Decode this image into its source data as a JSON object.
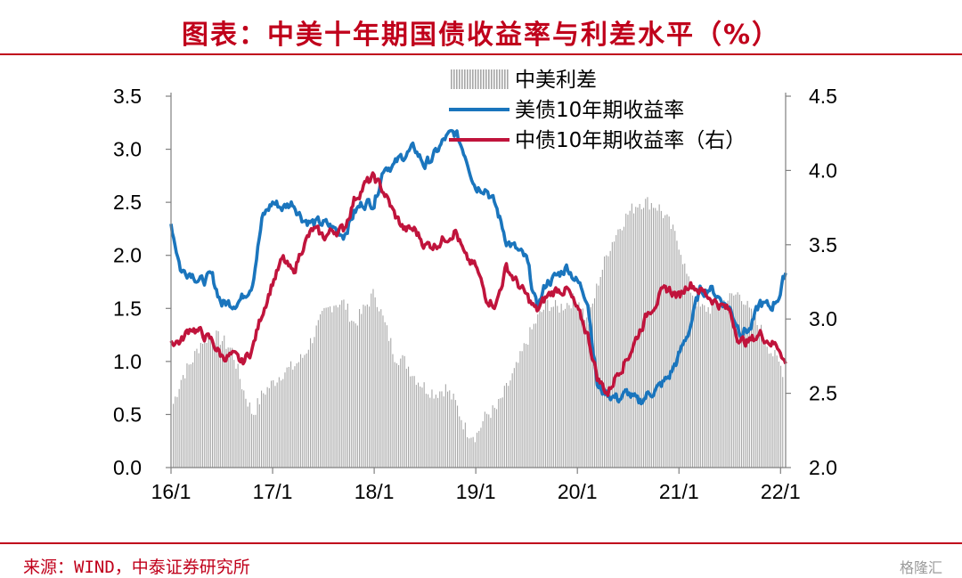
{
  "header": {
    "title": "图表：中美十年期国债收益率与利差水平（%）"
  },
  "footer": {
    "source": "来源：WIND，中泰证券研究所",
    "watermark": "格隆汇"
  },
  "chart_data": {
    "type": "line+bar",
    "x_ticks": [
      "16/1",
      "17/1",
      "18/1",
      "19/1",
      "20/1",
      "21/1",
      "22/1"
    ],
    "y_left": {
      "ticks": [
        "0.0",
        "0.5",
        "1.0",
        "1.5",
        "2.0",
        "2.5",
        "3.0",
        "3.5"
      ],
      "range": [
        0,
        3.5
      ]
    },
    "y_right": {
      "ticks": [
        "2.0",
        "2.5",
        "3.0",
        "3.5",
        "4.0",
        "4.5"
      ],
      "range": [
        2.0,
        4.5
      ]
    },
    "legend_position": "top-center",
    "series": [
      {
        "name": "中美利差",
        "type": "bar",
        "axis": "left",
        "color": "#a6a6a6",
        "points": [
          [
            2016.0,
            0.55
          ],
          [
            2016.1,
            0.85
          ],
          [
            2016.2,
            1.0
          ],
          [
            2016.3,
            1.2
          ],
          [
            2016.4,
            1.25
          ],
          [
            2016.5,
            1.2
          ],
          [
            2016.6,
            1.1
          ],
          [
            2016.7,
            0.75
          ],
          [
            2016.8,
            0.5
          ],
          [
            2016.9,
            0.7
          ],
          [
            2017.0,
            0.8
          ],
          [
            2017.1,
            0.9
          ],
          [
            2017.2,
            0.95
          ],
          [
            2017.3,
            1.05
          ],
          [
            2017.4,
            1.25
          ],
          [
            2017.5,
            1.45
          ],
          [
            2017.6,
            1.55
          ],
          [
            2017.7,
            1.55
          ],
          [
            2017.8,
            1.35
          ],
          [
            2017.9,
            1.5
          ],
          [
            2018.0,
            1.65
          ],
          [
            2018.1,
            1.35
          ],
          [
            2018.2,
            1.05
          ],
          [
            2018.3,
            1.0
          ],
          [
            2018.4,
            0.85
          ],
          [
            2018.5,
            0.75
          ],
          [
            2018.6,
            0.7
          ],
          [
            2018.7,
            0.75
          ],
          [
            2018.8,
            0.6
          ],
          [
            2018.9,
            0.35
          ],
          [
            2019.0,
            0.3
          ],
          [
            2019.1,
            0.5
          ],
          [
            2019.2,
            0.55
          ],
          [
            2019.3,
            0.75
          ],
          [
            2019.4,
            0.95
          ],
          [
            2019.5,
            1.2
          ],
          [
            2019.6,
            1.4
          ],
          [
            2019.7,
            1.55
          ],
          [
            2019.8,
            1.5
          ],
          [
            2019.9,
            1.55
          ],
          [
            2020.0,
            1.6
          ],
          [
            2020.1,
            1.35
          ],
          [
            2020.2,
            1.75
          ],
          [
            2020.3,
            2.05
          ],
          [
            2020.4,
            2.25
          ],
          [
            2020.5,
            2.4
          ],
          [
            2020.6,
            2.5
          ],
          [
            2020.7,
            2.5
          ],
          [
            2020.8,
            2.45
          ],
          [
            2020.9,
            2.3
          ],
          [
            2021.0,
            2.1
          ],
          [
            2021.1,
            1.7
          ],
          [
            2021.2,
            1.5
          ],
          [
            2021.3,
            1.5
          ],
          [
            2021.4,
            1.55
          ],
          [
            2021.5,
            1.6
          ],
          [
            2021.6,
            1.65
          ],
          [
            2021.7,
            1.45
          ],
          [
            2021.8,
            1.3
          ],
          [
            2021.9,
            1.1
          ],
          [
            2022.0,
            0.95
          ],
          [
            2022.05,
            0.85
          ]
        ]
      },
      {
        "name": "美债10年期收益率",
        "type": "line",
        "axis": "left",
        "color": "#1a75bd",
        "points": [
          [
            2016.0,
            2.3
          ],
          [
            2016.1,
            1.85
          ],
          [
            2016.2,
            1.85
          ],
          [
            2016.3,
            1.75
          ],
          [
            2016.4,
            1.8
          ],
          [
            2016.5,
            1.55
          ],
          [
            2016.6,
            1.55
          ],
          [
            2016.7,
            1.6
          ],
          [
            2016.8,
            1.75
          ],
          [
            2016.9,
            2.35
          ],
          [
            2017.0,
            2.5
          ],
          [
            2017.1,
            2.45
          ],
          [
            2017.2,
            2.5
          ],
          [
            2017.3,
            2.35
          ],
          [
            2017.4,
            2.3
          ],
          [
            2017.5,
            2.3
          ],
          [
            2017.6,
            2.25
          ],
          [
            2017.7,
            2.2
          ],
          [
            2017.8,
            2.4
          ],
          [
            2017.9,
            2.5
          ],
          [
            2018.0,
            2.5
          ],
          [
            2018.1,
            2.85
          ],
          [
            2018.2,
            2.85
          ],
          [
            2018.3,
            2.95
          ],
          [
            2018.4,
            3.0
          ],
          [
            2018.5,
            2.85
          ],
          [
            2018.6,
            2.95
          ],
          [
            2018.7,
            3.1
          ],
          [
            2018.8,
            3.15
          ],
          [
            2018.9,
            2.95
          ],
          [
            2019.0,
            2.65
          ],
          [
            2019.1,
            2.65
          ],
          [
            2019.2,
            2.45
          ],
          [
            2019.3,
            2.15
          ],
          [
            2019.4,
            2.05
          ],
          [
            2019.5,
            1.95
          ],
          [
            2019.6,
            1.5
          ],
          [
            2019.7,
            1.75
          ],
          [
            2019.8,
            1.8
          ],
          [
            2019.9,
            1.9
          ],
          [
            2020.0,
            1.75
          ],
          [
            2020.1,
            1.6
          ],
          [
            2020.2,
            0.75
          ],
          [
            2020.3,
            0.7
          ],
          [
            2020.4,
            0.65
          ],
          [
            2020.5,
            0.7
          ],
          [
            2020.6,
            0.6
          ],
          [
            2020.7,
            0.7
          ],
          [
            2020.8,
            0.75
          ],
          [
            2020.9,
            0.85
          ],
          [
            2021.0,
            1.05
          ],
          [
            2021.1,
            1.3
          ],
          [
            2021.2,
            1.65
          ],
          [
            2021.3,
            1.7
          ],
          [
            2021.4,
            1.6
          ],
          [
            2021.5,
            1.5
          ],
          [
            2021.6,
            1.3
          ],
          [
            2021.7,
            1.3
          ],
          [
            2021.8,
            1.55
          ],
          [
            2021.9,
            1.5
          ],
          [
            2022.0,
            1.65
          ],
          [
            2022.05,
            1.85
          ]
        ]
      },
      {
        "name": "中债10年期收益率（右）",
        "type": "line",
        "axis": "right",
        "color": "#c0143c",
        "points": [
          [
            2016.0,
            2.85
          ],
          [
            2016.1,
            2.85
          ],
          [
            2016.2,
            2.95
          ],
          [
            2016.3,
            2.9
          ],
          [
            2016.4,
            2.85
          ],
          [
            2016.5,
            2.75
          ],
          [
            2016.6,
            2.75
          ],
          [
            2016.7,
            2.7
          ],
          [
            2016.8,
            2.8
          ],
          [
            2016.9,
            3.05
          ],
          [
            2017.0,
            3.25
          ],
          [
            2017.1,
            3.4
          ],
          [
            2017.2,
            3.3
          ],
          [
            2017.3,
            3.5
          ],
          [
            2017.4,
            3.6
          ],
          [
            2017.5,
            3.55
          ],
          [
            2017.6,
            3.6
          ],
          [
            2017.7,
            3.6
          ],
          [
            2017.8,
            3.8
          ],
          [
            2017.9,
            3.9
          ],
          [
            2018.0,
            3.95
          ],
          [
            2018.1,
            3.85
          ],
          [
            2018.2,
            3.7
          ],
          [
            2018.3,
            3.6
          ],
          [
            2018.4,
            3.6
          ],
          [
            2018.5,
            3.5
          ],
          [
            2018.6,
            3.5
          ],
          [
            2018.7,
            3.55
          ],
          [
            2018.8,
            3.6
          ],
          [
            2018.9,
            3.4
          ],
          [
            2019.0,
            3.35
          ],
          [
            2019.1,
            3.15
          ],
          [
            2019.2,
            3.1
          ],
          [
            2019.3,
            3.35
          ],
          [
            2019.4,
            3.25
          ],
          [
            2019.5,
            3.15
          ],
          [
            2019.6,
            3.05
          ],
          [
            2019.7,
            3.15
          ],
          [
            2019.8,
            3.2
          ],
          [
            2019.9,
            3.2
          ],
          [
            2020.0,
            3.05
          ],
          [
            2020.1,
            2.9
          ],
          [
            2020.2,
            2.6
          ],
          [
            2020.3,
            2.5
          ],
          [
            2020.4,
            2.65
          ],
          [
            2020.5,
            2.75
          ],
          [
            2020.6,
            2.9
          ],
          [
            2020.7,
            3.05
          ],
          [
            2020.8,
            3.15
          ],
          [
            2020.9,
            3.2
          ],
          [
            2021.0,
            3.15
          ],
          [
            2021.1,
            3.25
          ],
          [
            2021.2,
            3.2
          ],
          [
            2021.3,
            3.15
          ],
          [
            2021.4,
            3.1
          ],
          [
            2021.5,
            3.05
          ],
          [
            2021.6,
            2.85
          ],
          [
            2021.7,
            2.85
          ],
          [
            2021.8,
            2.9
          ],
          [
            2021.9,
            2.85
          ],
          [
            2022.0,
            2.8
          ],
          [
            2022.05,
            2.7
          ]
        ]
      }
    ]
  }
}
